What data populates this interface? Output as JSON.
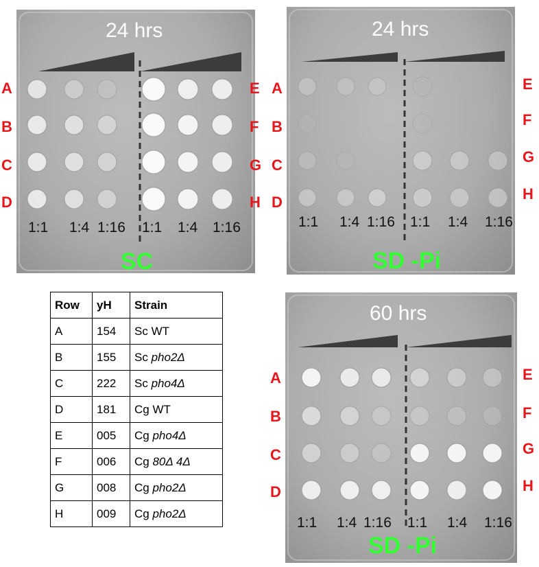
{
  "plates": [
    {
      "id": "plate-sc-24",
      "time": "24 hrs",
      "medium": "SC",
      "dilutions": [
        "1:1",
        "1:4",
        "1:16",
        "1:1",
        "1:4",
        "1:16"
      ],
      "left_rows": [
        "A",
        "B",
        "C",
        "D"
      ],
      "right_rows": [
        "E",
        "F",
        "G",
        "H"
      ]
    },
    {
      "id": "plate-sdpi-24",
      "time": "24 hrs",
      "medium": "SD -Pi",
      "dilutions": [
        "1:1",
        "1:4",
        "1:16",
        "1:1",
        "1:4",
        "1:16"
      ],
      "left_rows": [
        "A",
        "B",
        "C",
        "D"
      ],
      "right_rows": [
        "E",
        "F",
        "G",
        "H"
      ]
    },
    {
      "id": "plate-sdpi-60",
      "time": "60 hrs",
      "medium": "SD -Pi",
      "dilutions": [
        "1:1",
        "1:4",
        "1:16",
        "1:1",
        "1:4",
        "1:16"
      ],
      "left_rows": [
        "A",
        "B",
        "C",
        "D"
      ],
      "right_rows": [
        "E",
        "F",
        "G",
        "H"
      ]
    }
  ],
  "table": {
    "headers": [
      "Row",
      "yH",
      "Strain"
    ],
    "rows": [
      {
        "row": "A",
        "yh": "154",
        "species": "Sc",
        "gene": "WT",
        "gene_italic": false
      },
      {
        "row": "B",
        "yh": "155",
        "species": "Sc",
        "gene": "pho2Δ",
        "gene_italic": true
      },
      {
        "row": "C",
        "yh": "222",
        "species": "Sc",
        "gene": "pho4Δ",
        "gene_italic": true
      },
      {
        "row": "D",
        "yh": "181",
        "species": "Cg",
        "gene": "WT",
        "gene_italic": false
      },
      {
        "row": "E",
        "yh": "005",
        "species": "Cg",
        "gene": "pho4Δ",
        "gene_italic": true
      },
      {
        "row": "F",
        "yh": "006",
        "species": "Cg",
        "gene": "80Δ 4Δ",
        "gene_italic": true
      },
      {
        "row": "G",
        "yh": "008",
        "species": "Cg",
        "gene": "pho2Δ",
        "gene_italic": true
      },
      {
        "row": "H",
        "yh": "009",
        "species": "Cg",
        "gene": "pho2Δ",
        "gene_italic": true
      }
    ]
  },
  "colors": {
    "row_label": "#e8151b",
    "medium_label": "#33ff33",
    "time_label": "#ffffff",
    "plate": "#adadad"
  }
}
